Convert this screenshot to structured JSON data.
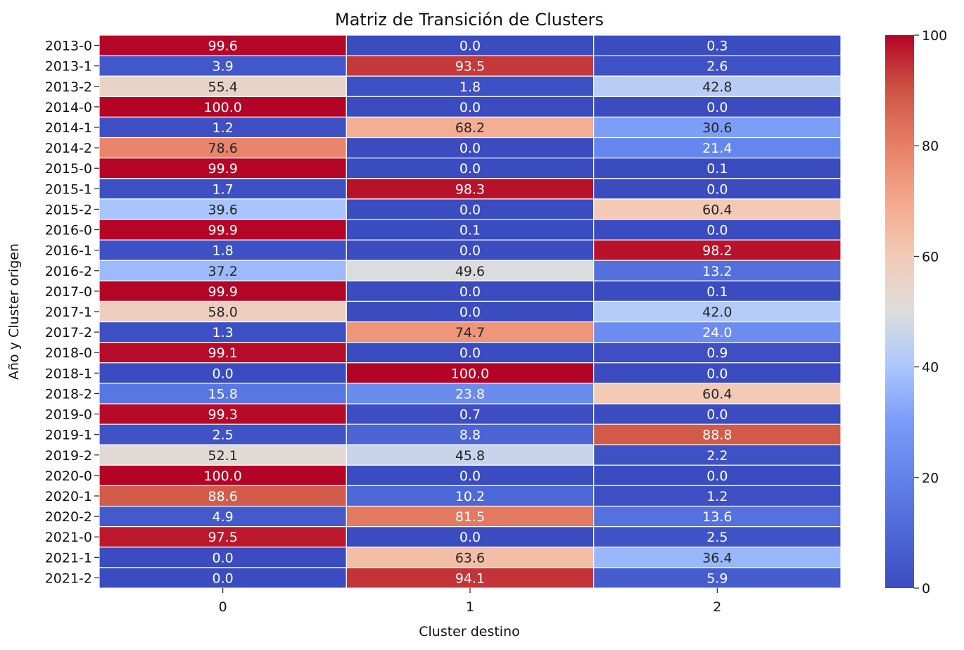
{
  "chart_data": {
    "type": "heatmap",
    "title": "Matriz de Transición de Clusters",
    "xlabel": "Cluster destino",
    "ylabel": "Año y Cluster origen",
    "x_categories": [
      "0",
      "1",
      "2"
    ],
    "y_categories": [
      "2013-0",
      "2013-1",
      "2013-2",
      "2014-0",
      "2014-1",
      "2014-2",
      "2015-0",
      "2015-1",
      "2015-2",
      "2016-0",
      "2016-1",
      "2016-2",
      "2017-0",
      "2017-1",
      "2017-2",
      "2018-0",
      "2018-1",
      "2018-2",
      "2019-0",
      "2019-1",
      "2019-2",
      "2020-0",
      "2020-1",
      "2020-2",
      "2021-0",
      "2021-1",
      "2021-2"
    ],
    "values": [
      [
        99.6,
        0.0,
        0.3
      ],
      [
        3.9,
        93.5,
        2.6
      ],
      [
        55.4,
        1.8,
        42.8
      ],
      [
        100.0,
        0.0,
        0.0
      ],
      [
        1.2,
        68.2,
        30.6
      ],
      [
        78.6,
        0.0,
        21.4
      ],
      [
        99.9,
        0.0,
        0.1
      ],
      [
        1.7,
        98.3,
        0.0
      ],
      [
        39.6,
        0.0,
        60.4
      ],
      [
        99.9,
        0.1,
        0.0
      ],
      [
        1.8,
        0.0,
        98.2
      ],
      [
        37.2,
        49.6,
        13.2
      ],
      [
        99.9,
        0.0,
        0.1
      ],
      [
        58.0,
        0.0,
        42.0
      ],
      [
        1.3,
        74.7,
        24.0
      ],
      [
        99.1,
        0.0,
        0.9
      ],
      [
        0.0,
        100.0,
        0.0
      ],
      [
        15.8,
        23.8,
        60.4
      ],
      [
        99.3,
        0.7,
        0.0
      ],
      [
        2.5,
        8.8,
        88.8
      ],
      [
        52.1,
        45.8,
        2.2
      ],
      [
        100.0,
        0.0,
        0.0
      ],
      [
        88.6,
        10.2,
        1.2
      ],
      [
        4.9,
        81.5,
        13.6
      ],
      [
        97.5,
        0.0,
        2.5
      ],
      [
        0.0,
        63.6,
        36.4
      ],
      [
        0.0,
        94.1,
        5.9
      ]
    ],
    "colorbar": {
      "range": [
        0,
        100
      ],
      "ticks": [
        "0",
        "20",
        "40",
        "60",
        "80",
        "100"
      ],
      "colormap": "coolwarm"
    },
    "grid": false
  }
}
